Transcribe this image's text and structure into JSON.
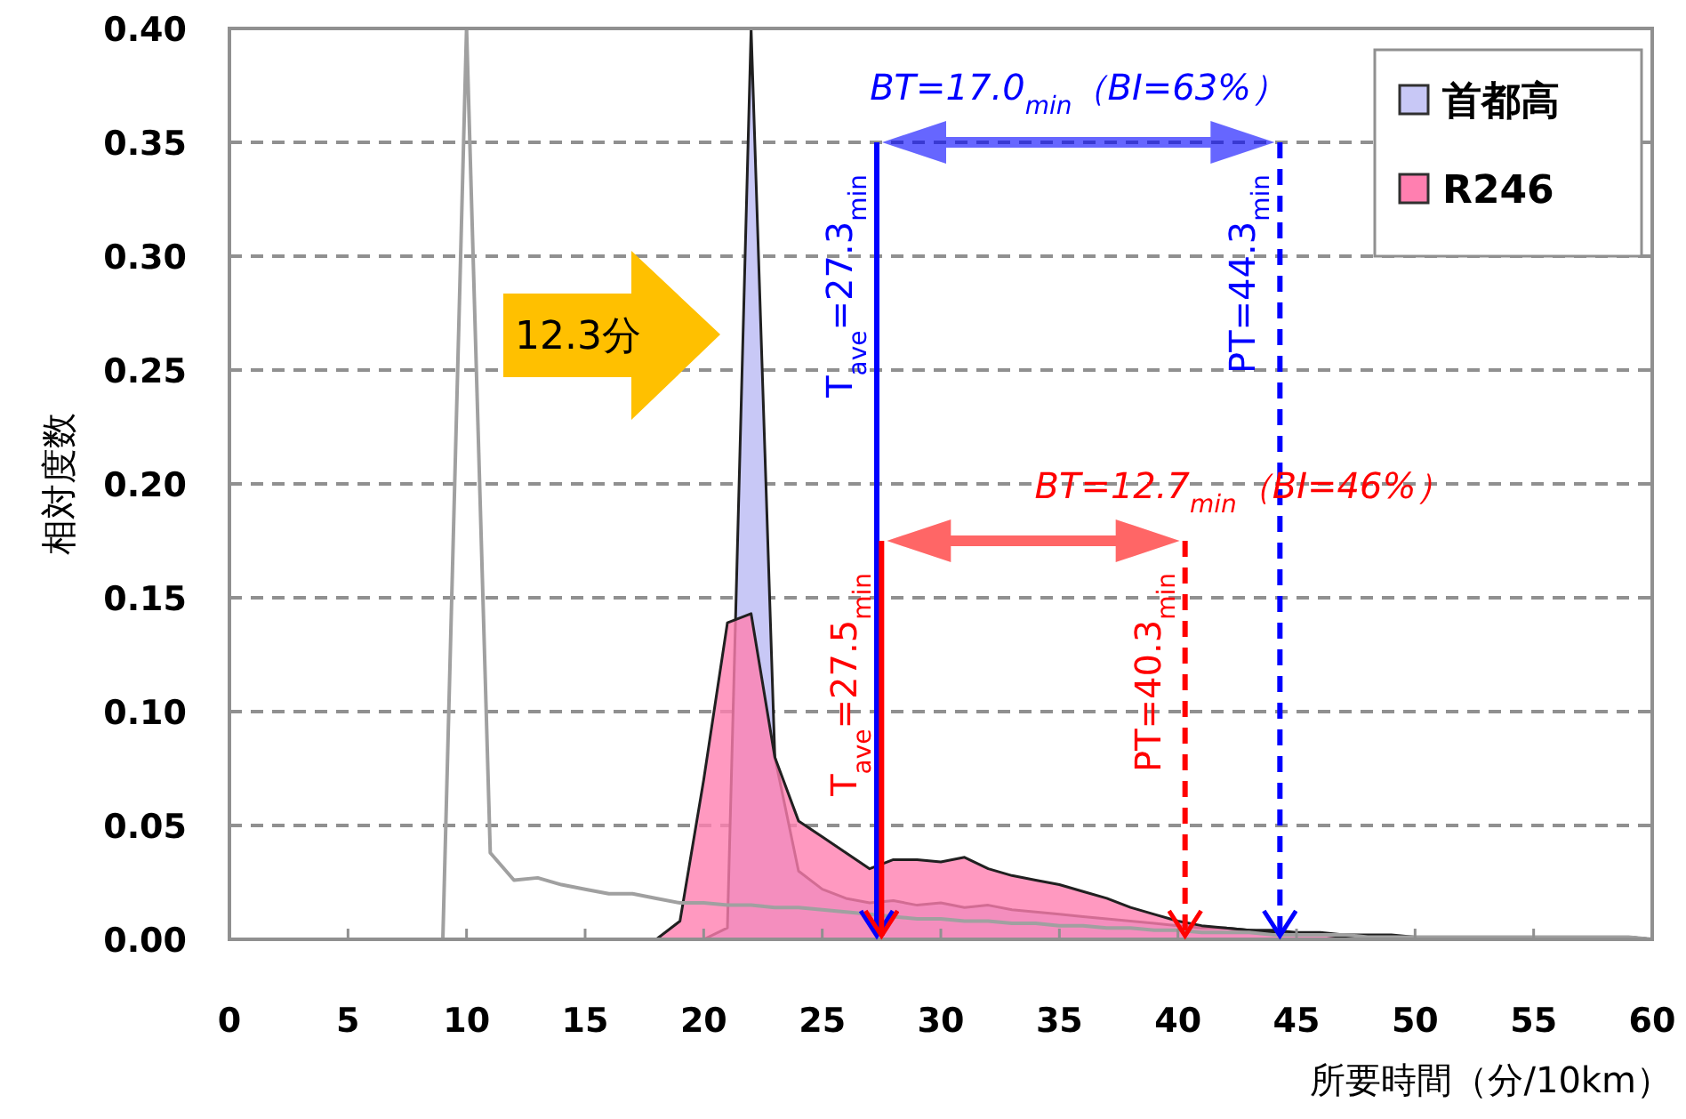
{
  "chart_data": {
    "type": "area",
    "xlabel": "所要時間（分/10km）",
    "ylabel": "相対度数",
    "x": [
      0,
      1,
      2,
      3,
      4,
      5,
      6,
      7,
      8,
      9,
      10,
      11,
      12,
      13,
      14,
      15,
      16,
      17,
      18,
      19,
      20,
      21,
      22,
      23,
      24,
      25,
      26,
      27,
      28,
      29,
      30,
      31,
      32,
      33,
      34,
      35,
      36,
      37,
      38,
      39,
      40,
      41,
      42,
      43,
      44,
      45,
      46,
      47,
      48,
      49,
      50,
      51,
      52,
      53,
      54,
      55,
      56,
      57,
      58,
      59,
      60
    ],
    "series": [
      {
        "type": "line",
        "color": "#a0a0a0",
        "values": [
          null,
          null,
          null,
          null,
          null,
          null,
          null,
          null,
          null,
          0,
          0.4,
          0.038,
          0.026,
          0.027,
          0.024,
          0.022,
          0.02,
          0.02,
          0.018,
          0.016,
          0.016,
          0.015,
          0.015,
          0.014,
          0.014,
          0.013,
          0.012,
          0.011,
          0.01,
          0.009,
          0.009,
          0.008,
          0.008,
          0.007,
          0.007,
          0.006,
          0.006,
          0.005,
          0.005,
          0.004,
          0.004,
          0.003,
          0.003,
          0.003,
          0.002,
          0.002,
          0.002,
          0.002,
          0.001,
          0.001,
          0.001,
          0.001,
          0.001,
          0.001,
          0.001,
          0.001,
          0.001,
          0.001,
          0.001,
          0.001,
          0
        ]
      },
      {
        "name": "首都高",
        "type": "area",
        "color": "#c8c8f6",
        "values": [
          0,
          0,
          0,
          0,
          0,
          0,
          0,
          0,
          0,
          0,
          0,
          0,
          0,
          0,
          0,
          0,
          0,
          0,
          0,
          0,
          0,
          0.005,
          0.4,
          0.08,
          0.03,
          0.022,
          0.018,
          0.016,
          0.017,
          0.015,
          0.016,
          0.014,
          0.015,
          0.013,
          0.012,
          0.011,
          0.01,
          0.009,
          0.008,
          0.007,
          0.006,
          0.005,
          0.005,
          0.004,
          0.004,
          0.003,
          0.003,
          0.002,
          0.002,
          0.002,
          0.001,
          0.001,
          0.001,
          0.001,
          0.001,
          0.001,
          0.001,
          0.001,
          0.001,
          0.001,
          0
        ]
      },
      {
        "name": "R246",
        "type": "area",
        "color": "#ff7fb0",
        "values": [
          0,
          0,
          0,
          0,
          0,
          0,
          0,
          0,
          0,
          0,
          0,
          0,
          0,
          0,
          0,
          0,
          0,
          0,
          0,
          0.008,
          0.07,
          0.139,
          0.143,
          0.08,
          0.052,
          0.045,
          0.038,
          0.031,
          0.035,
          0.035,
          0.034,
          0.036,
          0.031,
          0.028,
          0.026,
          0.024,
          0.021,
          0.018,
          0.014,
          0.011,
          0.008,
          0.006,
          0.005,
          0.004,
          0.003,
          0.002,
          0.002,
          0.001,
          0.001,
          0.001,
          0.001,
          0.001,
          0.001,
          0.001,
          0.001,
          0.001,
          0.001,
          0.001,
          0.001,
          0.001,
          0
        ]
      }
    ],
    "xlim": [
      0,
      60
    ],
    "xticks": [
      0,
      5,
      10,
      15,
      20,
      25,
      30,
      35,
      40,
      45,
      50,
      55,
      60
    ],
    "ylim": [
      0,
      0.4
    ],
    "yticks": [
      {
        "value": 0,
        "label": "0.00"
      },
      {
        "value": 0.05,
        "label": "0.05"
      },
      {
        "value": 0.1,
        "label": "0.10"
      },
      {
        "value": 0.15,
        "label": "0.15"
      },
      {
        "value": 0.2,
        "label": "0.20"
      },
      {
        "value": 0.25,
        "label": "0.25"
      },
      {
        "value": 0.3,
        "label": "0.30"
      },
      {
        "value": 0.35,
        "label": "0.35"
      },
      {
        "value": 0.4,
        "label": "0.40"
      }
    ],
    "grid": "y",
    "legend": "top right",
    "ref_lines": [
      {
        "axis": "x",
        "value": 27.3,
        "label": "T$_{ave}$=27.3$_{min}$",
        "color": "#0000ff",
        "line_style": "solid"
      },
      {
        "axis": "x",
        "value": 44.3,
        "label": "PT=44.3$_{min}$",
        "color": "#0000ff",
        "line_style": "dashed"
      },
      {
        "axis": "x",
        "value": 27.5,
        "label": "T$_{ave}$=27.5$_{min}$",
        "color": "#ff0000",
        "line_style": "solid"
      },
      {
        "axis": "x",
        "value": 40.3,
        "label": "PT=40.3$_{min}$",
        "color": "#ff0000",
        "line_style": "dashed"
      }
    ],
    "annotations": [
      "BT=17.0$_{min}$（BI=63%）",
      "BT=12.7$_{min}$（BI=46%）",
      "12.3分"
    ]
  }
}
